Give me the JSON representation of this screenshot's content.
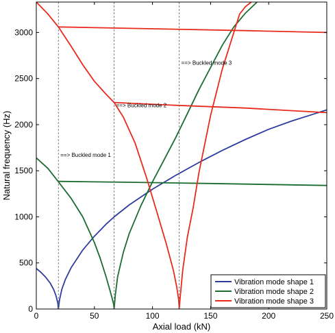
{
  "chart_data": {
    "type": "line",
    "title": "",
    "xlabel": "Axial load (kN)",
    "ylabel": "Natural frequency (Hz)",
    "xlim": [
      0,
      250
    ],
    "ylim": [
      0,
      3330
    ],
    "xticks": [
      0,
      50,
      100,
      150,
      200,
      250
    ],
    "yticks": [
      0,
      500,
      1000,
      1500,
      2000,
      2500,
      3000
    ],
    "grid": false,
    "legend_position": "bottom-right",
    "critical_loads": [
      19,
      67,
      123
    ],
    "series": [
      {
        "name": "Vibration mode shape 1",
        "color": "#2e3b9e",
        "segments": [
          {
            "x": [
              0,
              4,
              8,
              12,
              15,
              17,
              18.5,
              19
            ],
            "y": [
              440,
              398,
              346,
              280,
              210,
              143,
              65,
              0
            ]
          },
          {
            "x": [
              19,
              20,
              22,
              25,
              30,
              40,
              50,
              60,
              67,
              80,
              100,
              120,
              140,
              160,
              180,
              200,
              220,
              240,
              250
            ],
            "y": [
              0,
              100,
              215,
              320,
              450,
              640,
              790,
              920,
              1000,
              1130,
              1300,
              1450,
              1590,
              1720,
              1840,
              1950,
              2040,
              2120,
              2160
            ]
          }
        ]
      },
      {
        "name": "Vibration mode shape 2",
        "color": "#1a6b2e",
        "segments": [
          {
            "x": [
              0,
              10,
              19
            ],
            "y": [
              1640,
              1525,
              1380
            ]
          },
          {
            "x": [
              19,
              30,
              40,
              50,
              55,
              60,
              63,
              65,
              66.5,
              67
            ],
            "y": [
              1380,
              1200,
              1000,
              720,
              550,
              350,
              220,
              130,
              55,
              0
            ]
          },
          {
            "x": [
              67,
              68,
              70,
              75,
              80,
              90,
              100,
              110,
              120,
              130,
              140,
              150,
              160,
              170,
              180,
              190
            ],
            "y": [
              0,
              150,
              350,
              620,
              820,
              1120,
              1380,
              1620,
              1860,
              2120,
              2380,
              2620,
              2860,
              3060,
              3210,
              3330
            ]
          },
          {
            "x": [
              19,
              80,
              150,
              250
            ],
            "y": [
              1385,
              1375,
              1362,
              1340
            ]
          }
        ]
      },
      {
        "name": "Vibration mode shape 3",
        "color": "#e8291c",
        "segments": [
          {
            "x": [
              0,
              10,
              19
            ],
            "y": [
              3330,
              3200,
              3060
            ]
          },
          {
            "x": [
              19,
              30,
              40,
              50,
              60,
              67
            ],
            "y": [
              3060,
              2850,
              2650,
              2470,
              2330,
              2240
            ]
          },
          {
            "x": [
              67,
              75,
              85,
              95,
              105,
              112,
              118,
              121,
              122.5,
              123
            ],
            "y": [
              2240,
              2080,
              1800,
              1420,
              1000,
              700,
              420,
              230,
              100,
              0
            ]
          },
          {
            "x": [
              123,
              124,
              126,
              130,
              135,
              140,
              150,
              160,
              170,
              175,
              180,
              185
            ],
            "y": [
              0,
              150,
              420,
              780,
              1100,
              1480,
              2100,
              2600,
              3000,
              3200,
              3280,
              3330
            ]
          },
          {
            "x": [
              19,
              100,
              180,
              250
            ],
            "y": [
              3060,
              3040,
              3020,
              3000
            ]
          },
          {
            "x": [
              67,
              120,
              180,
              250
            ],
            "y": [
              2240,
              2210,
              2180,
              2130
            ]
          }
        ]
      }
    ],
    "annotations": [
      {
        "text": "==> Buckled mode 1",
        "x": 19,
        "y": 1650
      },
      {
        "text": "==> Buckled mode 2",
        "x": 67,
        "y": 2190
      },
      {
        "text": "==> Buckled mode 3",
        "x": 123,
        "y": 2650
      }
    ]
  }
}
